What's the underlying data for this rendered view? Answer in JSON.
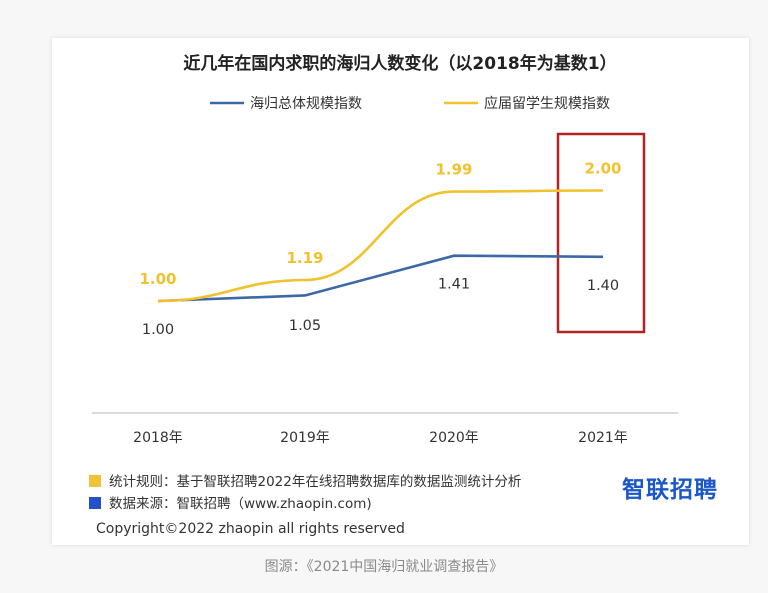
{
  "chart_data": {
    "type": "line",
    "title": "近几年在国内求职的海归人数变化（以2018年为基数1）",
    "categories": [
      "2018年",
      "2019年",
      "2020年",
      "2021年"
    ],
    "series": [
      {
        "name": "海归总体规模指数",
        "values": [
          1.0,
          1.05,
          1.41,
          1.4
        ],
        "labels": [
          "1.00",
          "1.05",
          "1.41",
          "1.40"
        ],
        "color": "#3d68a8"
      },
      {
        "name": "应届留学生规模指数",
        "values": [
          1.0,
          1.19,
          1.99,
          2.0
        ],
        "labels": [
          "1.00",
          "1.19",
          "1.99",
          "2.00"
        ],
        "color": "#f0c22e"
      }
    ],
    "highlight": {
      "category": "2021年",
      "color": "#b22222"
    }
  },
  "notes": [
    {
      "marker": "#f2c33a",
      "text": "统计规则：基于智联招聘2022年在线招聘数据库的数据监测统计分析"
    },
    {
      "marker": "#2451c7",
      "text": "数据来源：智联招聘（www.zhaopin.com)"
    }
  ],
  "logo_text": "智联招聘",
  "copyright": "Copyright©2022 zhaopin all rights reserved",
  "caption": "图源：《2021中国海归就业调查报告》"
}
